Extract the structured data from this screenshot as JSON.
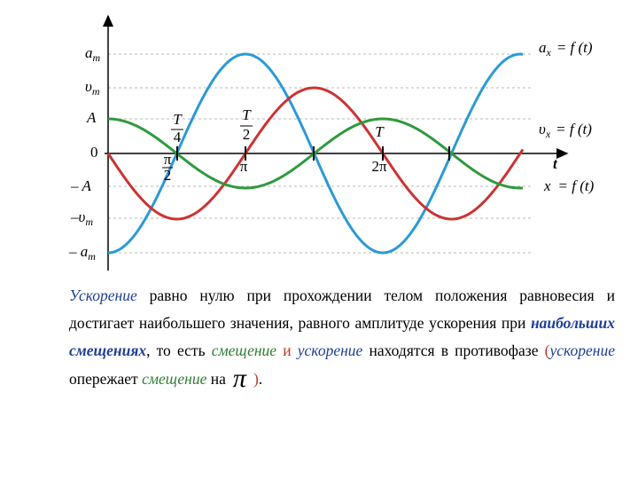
{
  "graph": {
    "y_labels": [
      {
        "main": "a",
        "sub": "m"
      },
      {
        "main": "υ",
        "sub": "m"
      },
      {
        "main": "A"
      },
      {
        "main": "0"
      },
      {
        "main": "– A"
      },
      {
        "main": "–υ",
        "sub": "m"
      },
      {
        "main": "– a",
        "sub": "m"
      }
    ],
    "curve_labels": [
      {
        "main": "a",
        "sub": "x",
        "rest": "= f (t)"
      },
      {
        "main": "υ",
        "sub": "x",
        "rest": "= f (t)"
      },
      {
        "main": "x",
        "rest": "= f (t)"
      }
    ],
    "axis_label": "t",
    "time_ticks": [
      {
        "num": "T",
        "den": "4"
      },
      {
        "num": "T",
        "den": "2"
      },
      {
        "text": "T"
      }
    ],
    "phase_ticks": [
      {
        "num": "π",
        "den": "2"
      },
      {
        "text": "π"
      },
      {
        "text": "2π"
      }
    ]
  },
  "paragraph": [
    "Ускорение",
    " равно нулю при прохождении телом положения равновесия и достигает наибольшего значения, равного амплитуде ускорения при ",
    "наибольших смещениях",
    ", то есть ",
    "смещение",
    " и ",
    "ускорение",
    " находятся в противофазе ",
    "(",
    "ускорение",
    " опережает ",
    "смещение",
    " на",
    "π",
    ")",
    "."
  ]
}
